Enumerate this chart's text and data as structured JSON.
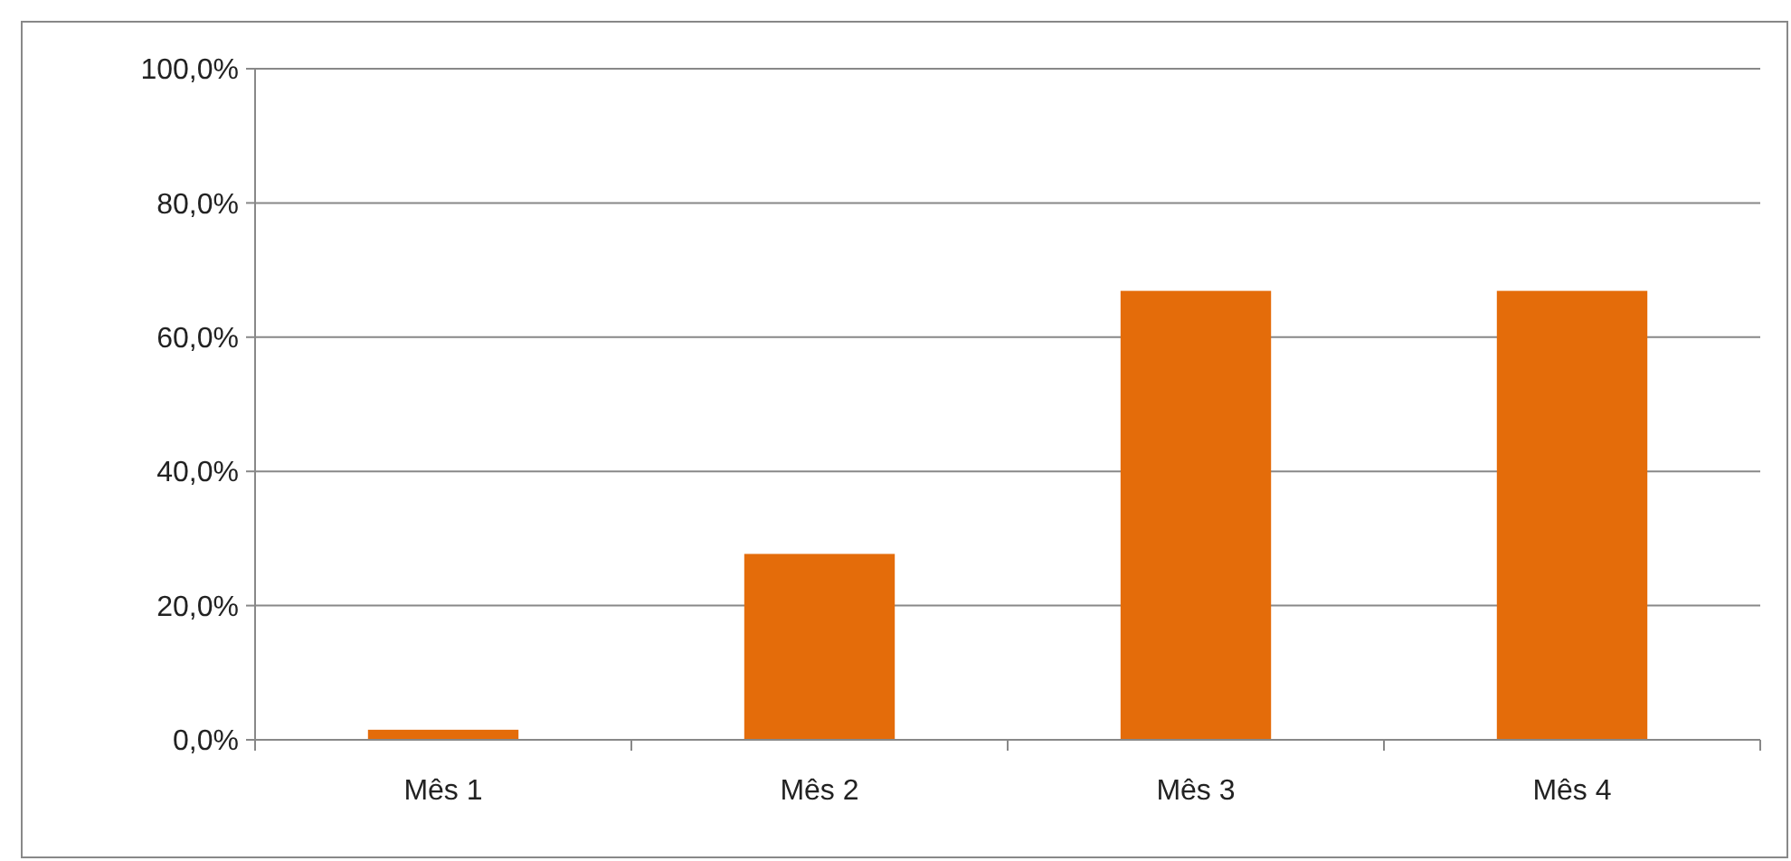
{
  "chart_data": {
    "type": "bar",
    "categories": [
      "Mês 1",
      "Mês 2",
      "Mês 3",
      "Mês 4"
    ],
    "values": [
      1.5,
      27.7,
      66.9,
      66.9
    ],
    "color": "#e46c0a",
    "ylim": [
      0,
      100
    ],
    "yticks": [
      {
        "value": 0,
        "label": "0,0%"
      },
      {
        "value": 20,
        "label": "20,0%"
      },
      {
        "value": 40,
        "label": "40,0%"
      },
      {
        "value": 60,
        "label": "60,0%"
      },
      {
        "value": 80,
        "label": "80,0%"
      },
      {
        "value": 100,
        "label": "100,0%"
      }
    ],
    "grid": "y"
  }
}
